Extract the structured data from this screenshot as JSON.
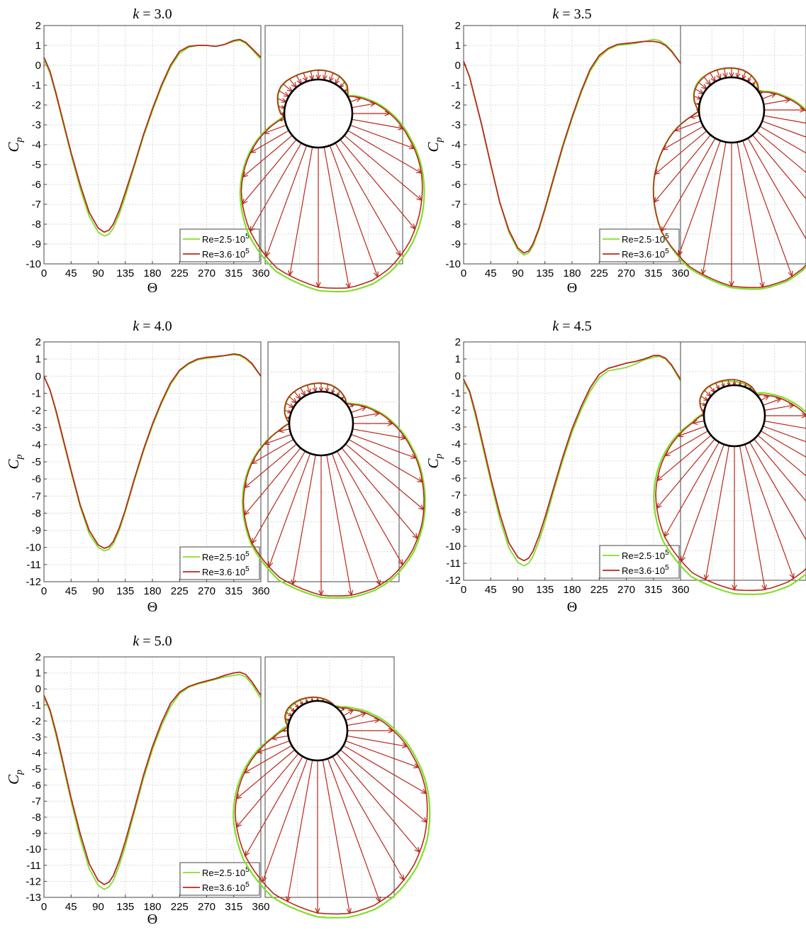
{
  "figure": {
    "x_ticks": [
      "0",
      "45",
      "90",
      "135",
      "180",
      "225",
      "270",
      "315",
      "360"
    ],
    "xlabel": "Θ",
    "ylabel_main": "C",
    "ylabel_sub": "p",
    "legend_base": [
      "Re=2.5·10",
      "Re=3.6·10"
    ],
    "legend_exp": "5"
  },
  "colors": {
    "series_low": "#7fe02a",
    "series_high": "#b8281c",
    "body": "#000000",
    "grid": "#d9d9d9"
  },
  "chart_data": [
    {
      "type": "line",
      "title": "k = 3.0",
      "title_var": "k",
      "title_rest": " = 3.0",
      "xlabel": "Θ",
      "ylabel": "C_p",
      "xlim": [
        0,
        360
      ],
      "ylim": [
        -10,
        2
      ],
      "yticks": [
        "2",
        "1",
        "0",
        "-1",
        "-2",
        "-3",
        "-4",
        "-5",
        "-6",
        "-7",
        "-8",
        "-9",
        "-10"
      ],
      "grid": true,
      "legend": "bottom-right",
      "series": [
        {
          "name": "Re=2.5·10^5",
          "x": [
            0,
            10,
            20,
            30,
            45,
            60,
            75,
            90,
            100,
            108,
            115,
            125,
            135,
            150,
            165,
            180,
            195,
            210,
            225,
            240,
            255,
            270,
            285,
            300,
            315,
            325,
            335,
            345,
            360
          ],
          "y": [
            0.3,
            -0.4,
            -1.5,
            -2.7,
            -4.5,
            -6.2,
            -7.6,
            -8.4,
            -8.6,
            -8.5,
            -8.2,
            -7.5,
            -6.6,
            -5.1,
            -3.6,
            -2.3,
            -1.1,
            -0.1,
            0.6,
            0.9,
            1.0,
            1.0,
            0.95,
            1.05,
            1.2,
            1.25,
            1.1,
            0.8,
            0.3
          ]
        },
        {
          "name": "Re=3.6·10^5",
          "x": [
            0,
            10,
            20,
            30,
            45,
            60,
            75,
            90,
            100,
            108,
            115,
            125,
            135,
            150,
            165,
            180,
            195,
            210,
            225,
            240,
            255,
            270,
            285,
            300,
            315,
            325,
            335,
            345,
            360
          ],
          "y": [
            0.4,
            -0.3,
            -1.4,
            -2.6,
            -4.4,
            -6.0,
            -7.4,
            -8.2,
            -8.4,
            -8.3,
            -8.0,
            -7.3,
            -6.4,
            -5.0,
            -3.5,
            -2.2,
            -1.0,
            0.0,
            0.7,
            0.95,
            1.0,
            1.0,
            0.95,
            1.05,
            1.25,
            1.3,
            1.15,
            0.85,
            0.4
          ]
        }
      ]
    },
    {
      "type": "line",
      "title": "k = 3.5",
      "title_var": "k",
      "title_rest": " = 3.5",
      "xlabel": "Θ",
      "ylabel": "C_p",
      "xlim": [
        0,
        360
      ],
      "ylim": [
        -10,
        2
      ],
      "yticks": [
        "2",
        "1",
        "0",
        "-1",
        "-2",
        "-3",
        "-4",
        "-5",
        "-6",
        "-7",
        "-8",
        "-9",
        "-10"
      ],
      "grid": true,
      "legend": "bottom-right",
      "series": [
        {
          "name": "Re=2.5·10^5",
          "x": [
            0,
            10,
            20,
            30,
            45,
            60,
            75,
            90,
            100,
            108,
            115,
            125,
            135,
            150,
            165,
            180,
            195,
            210,
            225,
            240,
            255,
            270,
            285,
            300,
            315,
            325,
            335,
            345,
            360
          ],
          "y": [
            0.2,
            -0.6,
            -1.8,
            -3.0,
            -5.0,
            -6.9,
            -8.4,
            -9.3,
            -9.55,
            -9.45,
            -9.1,
            -8.3,
            -7.3,
            -5.7,
            -4.1,
            -2.7,
            -1.4,
            -0.3,
            0.4,
            0.8,
            1.0,
            1.05,
            1.1,
            1.2,
            1.3,
            1.25,
            1.05,
            0.75,
            0.1
          ]
        },
        {
          "name": "Re=3.6·10^5",
          "x": [
            0,
            10,
            20,
            30,
            45,
            60,
            75,
            90,
            100,
            108,
            115,
            125,
            135,
            150,
            165,
            180,
            195,
            210,
            225,
            240,
            255,
            270,
            285,
            300,
            315,
            325,
            335,
            345,
            360
          ],
          "y": [
            0.2,
            -0.6,
            -1.8,
            -3.0,
            -5.0,
            -6.9,
            -8.3,
            -9.2,
            -9.45,
            -9.35,
            -9.0,
            -8.2,
            -7.2,
            -5.6,
            -4.0,
            -2.6,
            -1.3,
            -0.2,
            0.5,
            0.85,
            1.05,
            1.1,
            1.15,
            1.2,
            1.2,
            1.15,
            1.0,
            0.7,
            0.1
          ]
        }
      ]
    },
    {
      "type": "line",
      "title": "k = 4.0",
      "title_var": "k",
      "title_rest": " = 4.0",
      "xlabel": "Θ",
      "ylabel": "C_p",
      "xlim": [
        0,
        360
      ],
      "ylim": [
        -12,
        2
      ],
      "yticks": [
        "2",
        "1",
        "0",
        "-1",
        "-2",
        "-3",
        "-4",
        "-5",
        "-6",
        "-7",
        "-8",
        "-9",
        "-10",
        "-11",
        "-12"
      ],
      "grid": true,
      "legend": "bottom-right",
      "series": [
        {
          "name": "Re=2.5·10^5",
          "x": [
            0,
            10,
            20,
            30,
            45,
            60,
            75,
            90,
            100,
            108,
            115,
            125,
            135,
            150,
            165,
            180,
            195,
            210,
            225,
            240,
            255,
            270,
            285,
            300,
            315,
            325,
            335,
            345,
            360
          ],
          "y": [
            0.0,
            -0.8,
            -2.1,
            -3.5,
            -5.6,
            -7.6,
            -9.2,
            -10.0,
            -10.2,
            -10.1,
            -9.8,
            -9.0,
            -7.9,
            -6.1,
            -4.4,
            -2.9,
            -1.6,
            -0.5,
            0.3,
            0.7,
            0.95,
            1.05,
            1.1,
            1.2,
            1.25,
            1.2,
            1.0,
            0.7,
            0.0
          ]
        },
        {
          "name": "Re=3.6·10^5",
          "x": [
            0,
            10,
            20,
            30,
            45,
            60,
            75,
            90,
            100,
            108,
            115,
            125,
            135,
            150,
            165,
            180,
            195,
            210,
            225,
            240,
            255,
            270,
            285,
            300,
            315,
            325,
            335,
            345,
            360
          ],
          "y": [
            0.0,
            -0.8,
            -2.0,
            -3.4,
            -5.5,
            -7.5,
            -9.0,
            -9.85,
            -10.05,
            -9.95,
            -9.65,
            -8.85,
            -7.8,
            -6.0,
            -4.3,
            -2.8,
            -1.5,
            -0.4,
            0.35,
            0.75,
            1.0,
            1.1,
            1.15,
            1.2,
            1.3,
            1.25,
            1.05,
            0.75,
            0.0
          ]
        }
      ]
    },
    {
      "type": "line",
      "title": "k = 4.5",
      "title_var": "k",
      "title_rest": " = 4.5",
      "xlabel": "Θ",
      "ylabel": "C_p",
      "xlim": [
        0,
        360
      ],
      "ylim": [
        -12,
        2
      ],
      "yticks": [
        "2",
        "1",
        "0",
        "-1",
        "-2",
        "-3",
        "-4",
        "-5",
        "-6",
        "-7",
        "-8",
        "-9",
        "-10",
        "-11",
        "-12"
      ],
      "grid": true,
      "legend": "bottom-right",
      "series": [
        {
          "name": "Re=2.5·10^5",
          "x": [
            0,
            10,
            20,
            30,
            45,
            60,
            75,
            90,
            100,
            108,
            115,
            125,
            135,
            150,
            165,
            180,
            195,
            210,
            225,
            240,
            255,
            270,
            285,
            300,
            315,
            325,
            335,
            345,
            360
          ],
          "y": [
            -0.3,
            -1.0,
            -2.4,
            -3.9,
            -6.2,
            -8.4,
            -10.1,
            -10.95,
            -11.15,
            -11.0,
            -10.6,
            -9.7,
            -8.6,
            -6.7,
            -4.9,
            -3.3,
            -2.0,
            -0.9,
            -0.1,
            0.3,
            0.4,
            0.5,
            0.7,
            0.95,
            1.1,
            1.15,
            1.0,
            0.6,
            -0.3
          ]
        },
        {
          "name": "Re=3.6·10^5",
          "x": [
            0,
            10,
            20,
            30,
            45,
            60,
            75,
            90,
            100,
            108,
            115,
            125,
            135,
            150,
            165,
            180,
            195,
            210,
            225,
            240,
            255,
            270,
            285,
            300,
            315,
            325,
            335,
            345,
            360
          ],
          "y": [
            -0.2,
            -0.9,
            -2.2,
            -3.7,
            -6.0,
            -8.1,
            -9.8,
            -10.65,
            -10.85,
            -10.7,
            -10.3,
            -9.4,
            -8.3,
            -6.5,
            -4.7,
            -3.1,
            -1.8,
            -0.7,
            0.1,
            0.45,
            0.6,
            0.75,
            0.85,
            1.0,
            1.2,
            1.2,
            1.05,
            0.65,
            -0.2
          ]
        }
      ]
    },
    {
      "type": "line",
      "title": "k = 5.0",
      "title_var": "k",
      "title_rest": " = 5.0",
      "xlabel": "Θ",
      "ylabel": "C_p",
      "xlim": [
        0,
        360
      ],
      "ylim": [
        -13,
        2
      ],
      "yticks": [
        "2",
        "1",
        "0",
        "-1",
        "-2",
        "-3",
        "-4",
        "-5",
        "-6",
        "-7",
        "-8",
        "-9",
        "-10",
        "-11",
        "-12",
        "-13"
      ],
      "grid": true,
      "legend": "bottom-right",
      "series": [
        {
          "name": "Re=2.5·10^5",
          "x": [
            0,
            10,
            20,
            30,
            45,
            60,
            75,
            90,
            100,
            108,
            115,
            125,
            135,
            150,
            165,
            180,
            195,
            210,
            225,
            240,
            255,
            270,
            285,
            300,
            315,
            325,
            335,
            345,
            360
          ],
          "y": [
            -0.5,
            -1.4,
            -2.9,
            -4.5,
            -7.0,
            -9.3,
            -11.2,
            -12.25,
            -12.5,
            -12.35,
            -11.95,
            -11.0,
            -9.8,
            -7.7,
            -5.6,
            -3.8,
            -2.3,
            -1.1,
            -0.3,
            0.1,
            0.3,
            0.45,
            0.6,
            0.75,
            0.85,
            0.9,
            0.75,
            0.3,
            -0.6
          ]
        },
        {
          "name": "Re=3.6·10^5",
          "x": [
            0,
            10,
            20,
            30,
            45,
            60,
            75,
            90,
            100,
            108,
            115,
            125,
            135,
            150,
            165,
            180,
            195,
            210,
            225,
            240,
            255,
            270,
            285,
            300,
            315,
            325,
            335,
            345,
            360
          ],
          "y": [
            -0.4,
            -1.3,
            -2.7,
            -4.3,
            -6.8,
            -9.0,
            -10.9,
            -11.95,
            -12.2,
            -12.05,
            -11.65,
            -10.7,
            -9.5,
            -7.5,
            -5.4,
            -3.6,
            -2.1,
            -0.9,
            -0.2,
            0.15,
            0.35,
            0.5,
            0.65,
            0.85,
            1.0,
            1.05,
            0.9,
            0.45,
            -0.4
          ]
        }
      ]
    }
  ]
}
